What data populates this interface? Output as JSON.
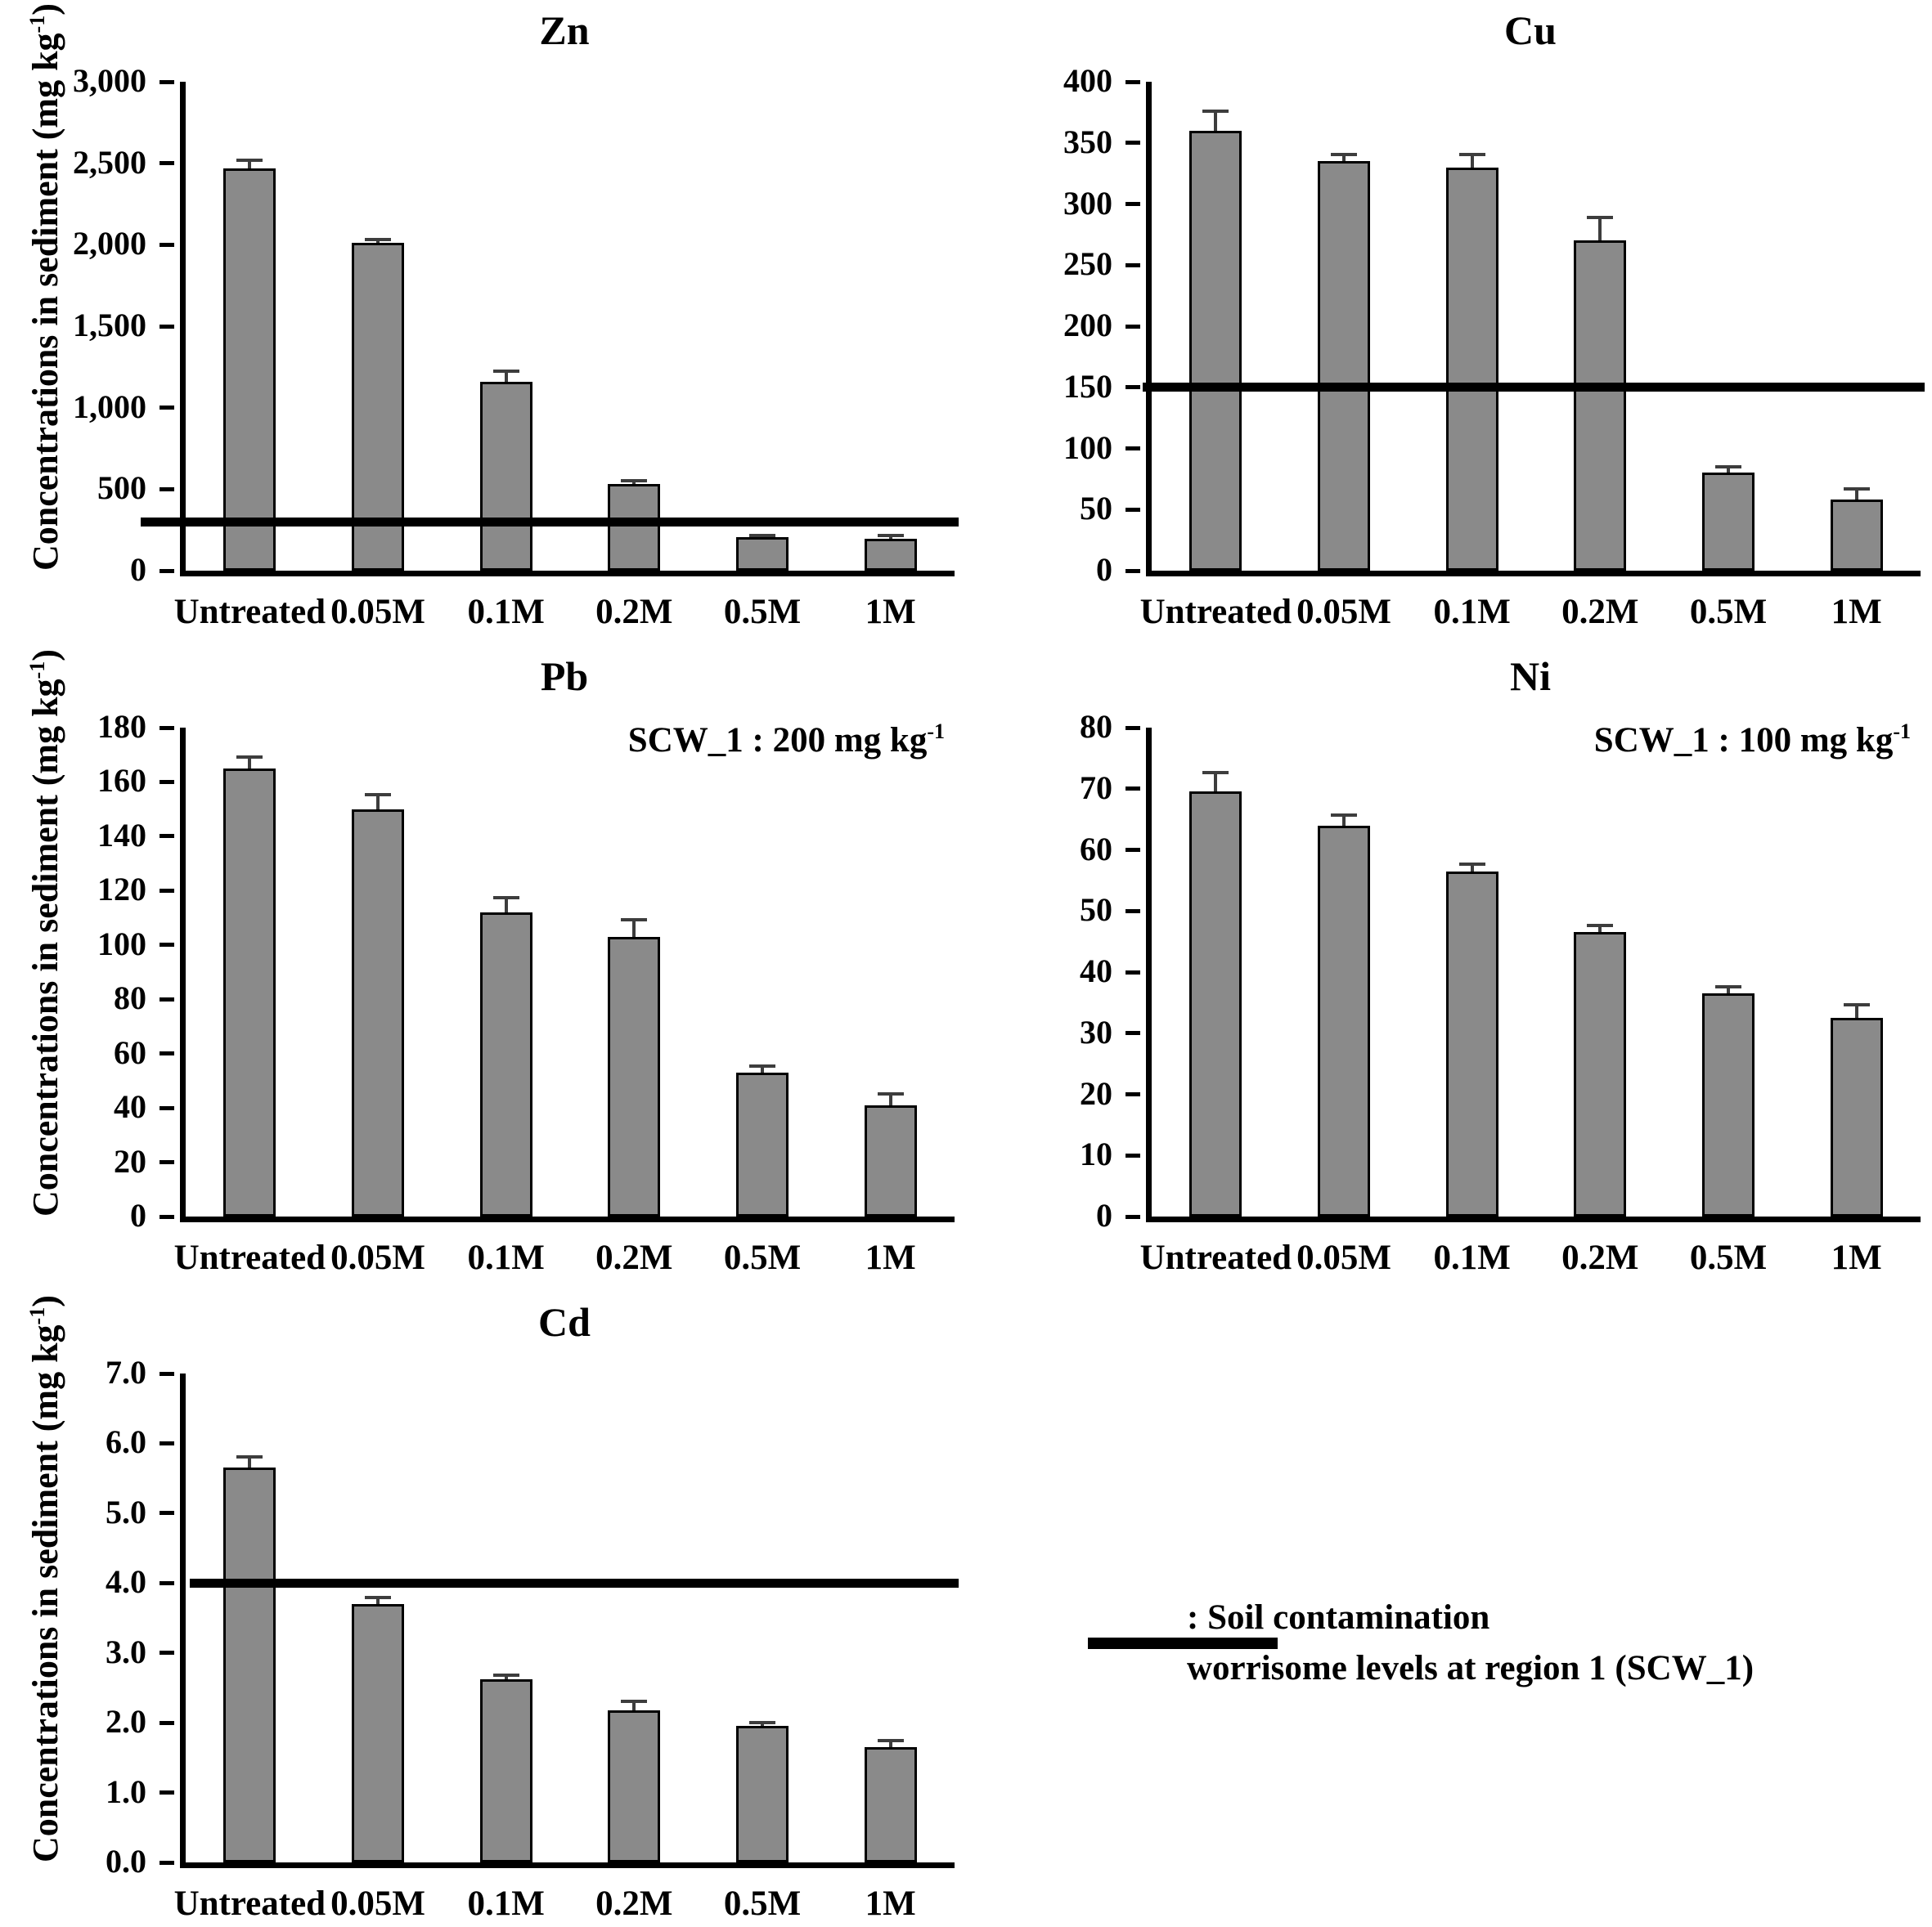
{
  "figure": {
    "y_axis_label": {
      "text": "Concentrations in sediment (mg kg",
      "sup": "-1",
      "suffix": ")"
    },
    "legend": {
      "line1": ": Soil contamination",
      "line2": "worrisome levels at region 1 (SCW_1)",
      "swatch_meaning": "scw-threshold-line"
    },
    "colors": {
      "bar_fill": "#8a8a8a",
      "bar_border": "#000000",
      "error_bar": "#3d3d3d",
      "axis": "#000000",
      "scw_line": "#000000"
    }
  },
  "chart_data": [
    {
      "id": "zn",
      "type": "bar",
      "title": "Zn",
      "categories": [
        "Untreated",
        "0.05M",
        "0.1M",
        "0.2M",
        "0.5M",
        "1M"
      ],
      "values": [
        2470,
        2010,
        1160,
        530,
        205,
        195
      ],
      "errors": [
        45,
        15,
        60,
        15,
        8,
        15
      ],
      "ylim": [
        0,
        3000
      ],
      "y_tick_labels": [
        "0",
        "500",
        "1,000",
        "1,500",
        "2,000",
        "2,500",
        "3,000"
      ],
      "scw_line_value": 300,
      "annotation": null,
      "has_y_axis_label": true,
      "xlabel": "",
      "ylabel": "Concentrations in sediment (mg kg-1)",
      "grid": false,
      "legend_position": "none"
    },
    {
      "id": "cu",
      "type": "bar",
      "title": "Cu",
      "categories": [
        "Untreated",
        "0.05M",
        "0.1M",
        "0.2M",
        "0.5M",
        "1M"
      ],
      "values": [
        360,
        335,
        330,
        270,
        80,
        58
      ],
      "errors": [
        15,
        5,
        10,
        18,
        4,
        8
      ],
      "ylim": [
        0,
        400
      ],
      "y_tick_labels": [
        "0",
        "50",
        "100",
        "150",
        "200",
        "250",
        "300",
        "350",
        "400"
      ],
      "scw_line_value": 150,
      "annotation": null,
      "has_y_axis_label": false,
      "xlabel": "",
      "ylabel": "",
      "grid": false,
      "legend_position": "none"
    },
    {
      "id": "pb",
      "type": "bar",
      "title": "Pb",
      "categories": [
        "Untreated",
        "0.05M",
        "0.1M",
        "0.2M",
        "0.5M",
        "1M"
      ],
      "values": [
        165,
        150,
        112,
        103,
        53,
        41
      ],
      "errors": [
        4,
        5,
        5,
        6,
        2,
        4
      ],
      "ylim": [
        0,
        180
      ],
      "y_tick_labels": [
        "0",
        "20",
        "40",
        "60",
        "80",
        "100",
        "120",
        "140",
        "160",
        "180"
      ],
      "scw_line_value": null,
      "annotation": {
        "text": "SCW_1 : 200 mg kg",
        "sup": "-1"
      },
      "has_y_axis_label": true,
      "xlabel": "",
      "ylabel": "Concentrations in sediment (mg kg-1)",
      "grid": false,
      "legend_position": "none"
    },
    {
      "id": "ni",
      "type": "bar",
      "title": "Ni",
      "categories": [
        "Untreated",
        "0.05M",
        "0.1M",
        "0.2M",
        "0.5M",
        "1M"
      ],
      "values": [
        69.5,
        64,
        56.5,
        46.5,
        36.5,
        32.5
      ],
      "errors": [
        3,
        1.5,
        1,
        1,
        1,
        2
      ],
      "ylim": [
        0,
        80
      ],
      "y_tick_labels": [
        "0",
        "10",
        "20",
        "30",
        "40",
        "50",
        "60",
        "70",
        "80"
      ],
      "scw_line_value": null,
      "annotation": {
        "text": "SCW_1 : 100 mg kg",
        "sup": "-1"
      },
      "has_y_axis_label": false,
      "xlabel": "",
      "ylabel": "",
      "grid": false,
      "legend_position": "none"
    },
    {
      "id": "cd",
      "type": "bar",
      "title": "Cd",
      "categories": [
        "Untreated",
        "0.05M",
        "0.1M",
        "0.2M",
        "0.5M",
        "1M"
      ],
      "values": [
        5.65,
        3.7,
        2.62,
        2.18,
        1.95,
        1.65
      ],
      "errors": [
        0.15,
        0.08,
        0.05,
        0.12,
        0.04,
        0.08
      ],
      "ylim": [
        0,
        7
      ],
      "y_tick_labels": [
        "0.0",
        "1.0",
        "2.0",
        "3.0",
        "4.0",
        "5.0",
        "6.0",
        "7.0"
      ],
      "scw_line_value": 4.0,
      "annotation": null,
      "has_y_axis_label": true,
      "xlabel": "",
      "ylabel": "Concentrations in sediment (mg kg-1)",
      "grid": false,
      "legend_position": "bottom-right-cell"
    }
  ]
}
